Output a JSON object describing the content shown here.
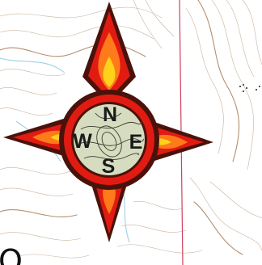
{
  "compass": {
    "north": "N",
    "east": "E",
    "south": "S",
    "west": "W"
  },
  "colors": {
    "outer_outline": "#4a120b",
    "flame_outer": "#e21b12",
    "flame_mid": "#ff7a1a",
    "flame_inner": "#ffd21a",
    "medallion_bg": "#d6dcc0",
    "map_contour": "#c9b29d",
    "map_index_contour": "#b58f6e",
    "map_water": "#9fd0e6",
    "map_boundary": "#d04060"
  },
  "icons": [
    "compass-rose-icon",
    "topographic-map-background",
    "flame-star-icon"
  ],
  "map_labels": {
    "corner_glyph": "O"
  }
}
